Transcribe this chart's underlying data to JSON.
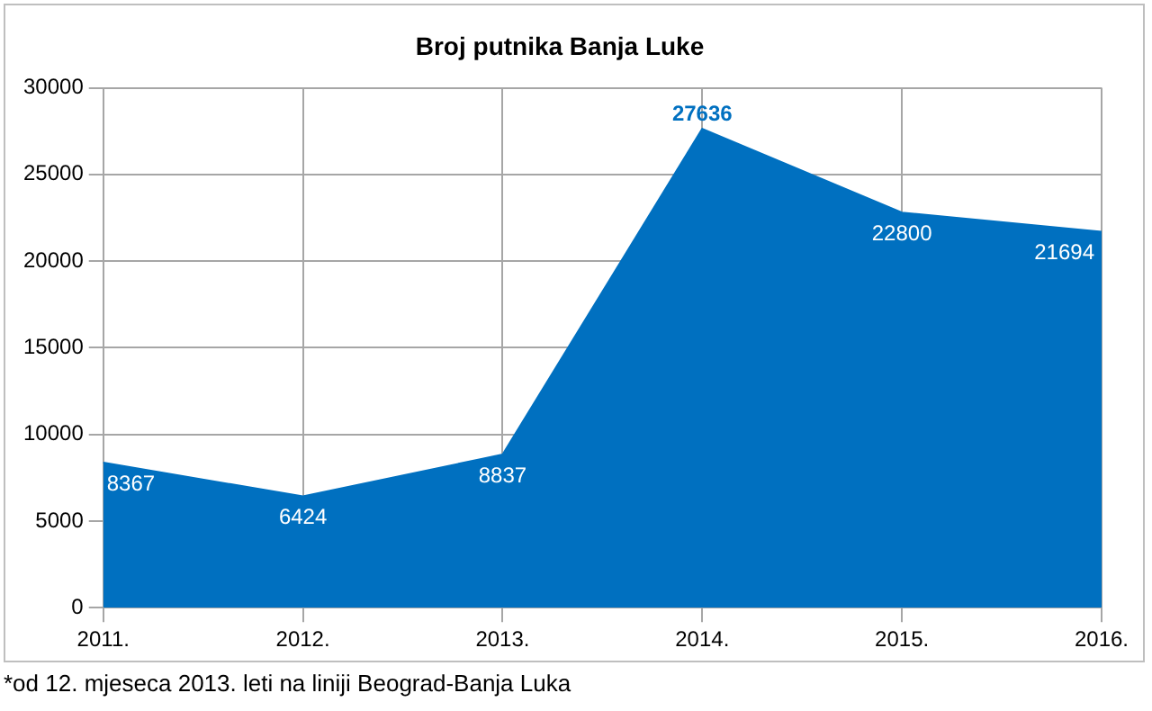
{
  "chart_data": {
    "type": "area",
    "title": "Broj putnika Banja Luke",
    "categories": [
      "2011.",
      "2012.",
      "2013.",
      "2014.",
      "2015.",
      "2016."
    ],
    "series": [
      {
        "color": "#0070c0",
        "values": [
          8367,
          6424,
          8837,
          27636,
          22800,
          21694
        ]
      }
    ],
    "ylim": [
      0,
      30000
    ],
    "yticks": [
      0,
      5000,
      10000,
      15000,
      20000,
      25000,
      30000
    ],
    "grid": true,
    "legend": false,
    "data_labels": true,
    "marker": "none",
    "annotations": [
      "*od 12. mjeseca 2013. leti na liniji Beograd-Banja Luka"
    ]
  }
}
